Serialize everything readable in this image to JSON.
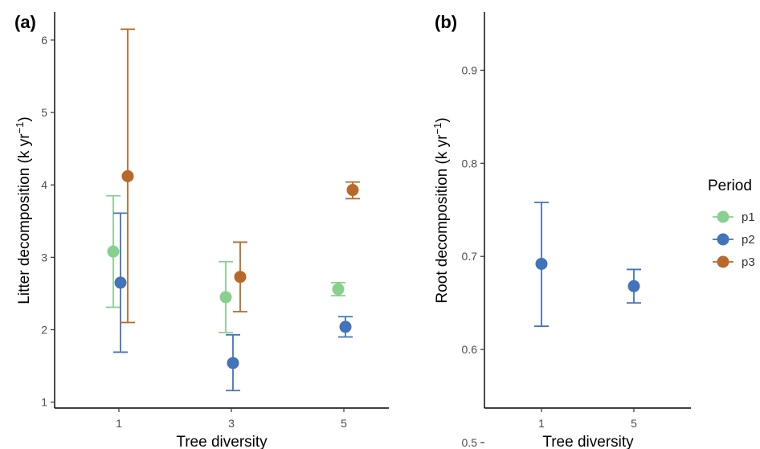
{
  "colors": {
    "p1": "#88d08e",
    "p2": "#4273bb",
    "p3": "#b8692a"
  },
  "legend": {
    "title": "Period",
    "items": [
      {
        "label": "p1",
        "color": "#88d08e"
      },
      {
        "label": "p2",
        "color": "#4273bb"
      },
      {
        "label": "p3",
        "color": "#b8692a"
      }
    ]
  },
  "chart_data": [
    {
      "type": "scatter",
      "tag": "(a)",
      "xlabel": "Tree diversity",
      "ylabel": "Litter decomposition (k yr",
      "ylabel_sup": "−1",
      "ylabel_close": ")",
      "x_ticks": [
        "1",
        "3",
        "5"
      ],
      "ylim": [
        0.95,
        6.4
      ],
      "y_ticks": [
        1,
        2,
        3,
        4,
        5,
        6
      ],
      "series": [
        {
          "name": "p1",
          "color": "#88d08e",
          "points": [
            {
              "x": "1",
              "y": 3.08,
              "lower": 2.31,
              "upper": 3.85
            },
            {
              "x": "3",
              "y": 2.45,
              "lower": 1.96,
              "upper": 2.94
            },
            {
              "x": "5",
              "y": 2.56,
              "lower": 2.47,
              "upper": 2.65
            }
          ]
        },
        {
          "name": "p2",
          "color": "#4273bb",
          "points": [
            {
              "x": "1",
              "y": 2.65,
              "lower": 1.69,
              "upper": 3.61
            },
            {
              "x": "3",
              "y": 1.54,
              "lower": 1.16,
              "upper": 1.93
            },
            {
              "x": "5",
              "y": 2.04,
              "lower": 1.9,
              "upper": 2.18
            }
          ]
        },
        {
          "name": "p3",
          "color": "#b8692a",
          "points": [
            {
              "x": "1",
              "y": 4.12,
              "lower": 2.1,
              "upper": 6.15
            },
            {
              "x": "3",
              "y": 2.73,
              "lower": 2.25,
              "upper": 3.21
            },
            {
              "x": "5",
              "y": 3.93,
              "lower": 3.81,
              "upper": 4.04
            }
          ]
        }
      ]
    },
    {
      "type": "scatter",
      "tag": "(b)",
      "xlabel": "Tree diversity",
      "ylabel": "Root decomposition (k yr",
      "ylabel_sup": "−1",
      "ylabel_close": ")",
      "x_ticks": [
        "1",
        "5"
      ],
      "ylim": [
        0.48,
        0.92
      ],
      "y_ticks": [
        0.5,
        0.6,
        0.7,
        0.8,
        0.9
      ],
      "series": [
        {
          "name": "p2",
          "color": "#4273bb",
          "points": [
            {
              "x": "1",
              "y": 0.692,
              "lower": 0.625,
              "upper": 0.758
            },
            {
              "x": "5",
              "y": 0.668,
              "lower": 0.65,
              "upper": 0.686
            }
          ]
        }
      ]
    }
  ]
}
